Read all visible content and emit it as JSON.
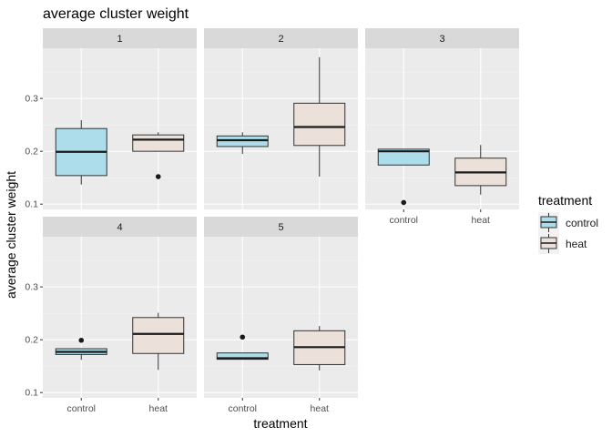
{
  "chart_data": {
    "type": "boxplot",
    "title": "average cluster weight",
    "xlabel": "treatment",
    "ylabel": "average cluster weight",
    "ylim": [
      0.09,
      0.395
    ],
    "y_ticks": [
      0.1,
      0.2,
      0.3
    ],
    "y_tick_labels": [
      "0.1",
      "0.2",
      "0.3"
    ],
    "categories": [
      "control",
      "heat"
    ],
    "grid": true,
    "legend": {
      "title": "treatment",
      "position": "right",
      "entries": [
        {
          "label": "control",
          "color": "#ADDDEB"
        },
        {
          "label": "heat",
          "color": "#EBE1DA"
        }
      ]
    },
    "panels": [
      {
        "label": "1",
        "boxes": [
          {
            "group": "control",
            "min": 0.137,
            "q1": 0.154,
            "median": 0.199,
            "q3": 0.243,
            "max": 0.259,
            "outliers": []
          },
          {
            "group": "heat",
            "min": 0.2,
            "q1": 0.2,
            "median": 0.222,
            "q3": 0.231,
            "max": 0.236,
            "outliers": [
              0.152
            ]
          }
        ]
      },
      {
        "label": "2",
        "boxes": [
          {
            "group": "control",
            "min": 0.195,
            "q1": 0.209,
            "median": 0.221,
            "q3": 0.229,
            "max": 0.236,
            "outliers": []
          },
          {
            "group": "heat",
            "min": 0.152,
            "q1": 0.211,
            "median": 0.246,
            "q3": 0.291,
            "max": 0.378,
            "outliers": []
          }
        ]
      },
      {
        "label": "3",
        "boxes": [
          {
            "group": "control",
            "min": 0.174,
            "q1": 0.174,
            "median": 0.2,
            "q3": 0.204,
            "max": 0.204,
            "outliers": [
              0.103
            ]
          },
          {
            "group": "heat",
            "min": 0.118,
            "q1": 0.135,
            "median": 0.16,
            "q3": 0.187,
            "max": 0.212,
            "outliers": []
          }
        ]
      },
      {
        "label": "4",
        "boxes": [
          {
            "group": "control",
            "min": 0.162,
            "q1": 0.172,
            "median": 0.177,
            "q3": 0.183,
            "max": 0.183,
            "outliers": [
              0.199
            ]
          },
          {
            "group": "heat",
            "min": 0.143,
            "q1": 0.174,
            "median": 0.211,
            "q3": 0.242,
            "max": 0.251,
            "outliers": []
          }
        ]
      },
      {
        "label": "5",
        "boxes": [
          {
            "group": "control",
            "min": 0.163,
            "q1": 0.163,
            "median": 0.165,
            "q3": 0.175,
            "max": 0.175,
            "outliers": [
              0.205
            ]
          },
          {
            "group": "heat",
            "min": 0.142,
            "q1": 0.153,
            "median": 0.186,
            "q3": 0.217,
            "max": 0.226,
            "outliers": []
          }
        ]
      }
    ]
  }
}
